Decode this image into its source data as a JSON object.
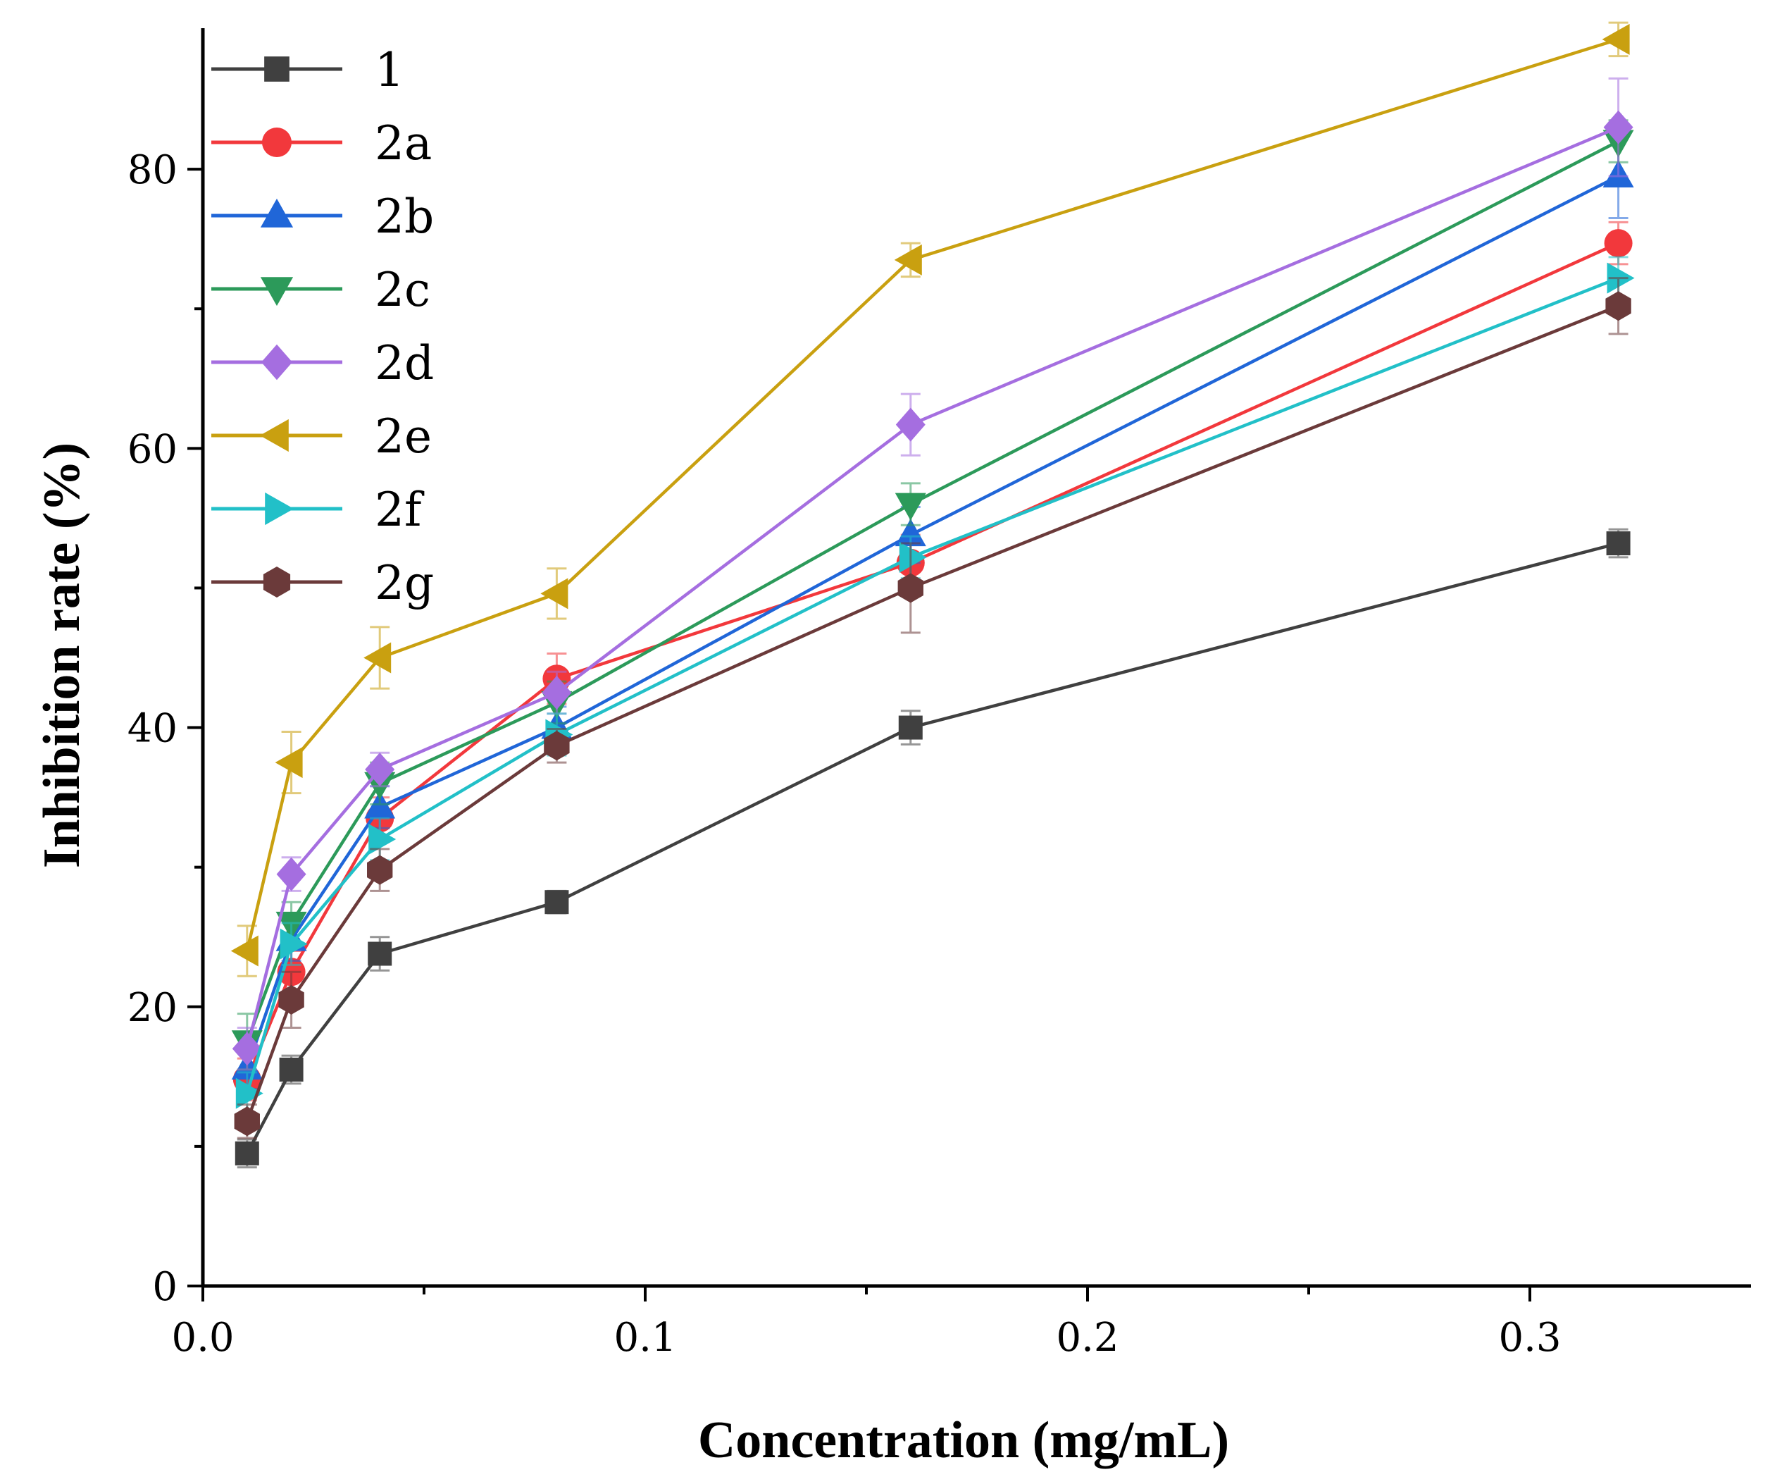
{
  "chart_data": {
    "type": "line",
    "xlabel": "Concentration (mg/mL)",
    "ylabel": "Inhibition rate (%)",
    "xlim": [
      0.0,
      0.35
    ],
    "ylim": [
      0,
      90
    ],
    "xticks": [
      0.0,
      0.1,
      0.2,
      0.3
    ],
    "xtick_labels": [
      "0.0",
      "0.1",
      "0.2",
      "0.3"
    ],
    "yticks": [
      0,
      20,
      40,
      60,
      80
    ],
    "ytick_labels": [
      "0",
      "20",
      "40",
      "60",
      "80"
    ],
    "legend_position": "top-left",
    "x": [
      0.01,
      0.02,
      0.04,
      0.08,
      0.16,
      0.32
    ],
    "series": [
      {
        "name": "1",
        "color": "#404040",
        "marker": "square",
        "values": [
          9.5,
          15.5,
          23.8,
          27.5,
          40.0,
          53.2
        ],
        "errors": [
          1.0,
          1.0,
          1.2,
          0.8,
          1.2,
          1.0
        ]
      },
      {
        "name": "2a",
        "color": "#f2383c",
        "marker": "circle",
        "values": [
          14.8,
          22.5,
          33.5,
          43.5,
          51.8,
          74.7
        ],
        "errors": [
          1.5,
          1.5,
          1.5,
          1.8,
          2.0,
          1.5
        ]
      },
      {
        "name": "2b",
        "color": "#2066d8",
        "marker": "triangle-up",
        "values": [
          15.6,
          24.8,
          34.3,
          40.0,
          53.8,
          79.5
        ],
        "errors": [
          1.5,
          1.5,
          1.5,
          1.5,
          2.0,
          3.0
        ]
      },
      {
        "name": "2c",
        "color": "#2c9a5a",
        "marker": "triangle-down",
        "values": [
          17.5,
          26.0,
          36.0,
          41.8,
          56.0,
          82.0
        ],
        "errors": [
          2.0,
          1.5,
          1.5,
          1.5,
          1.5,
          1.5
        ]
      },
      {
        "name": "2d",
        "color": "#a56ee0",
        "marker": "diamond",
        "values": [
          17.0,
          29.5,
          37.0,
          42.5,
          61.7,
          83.0
        ],
        "errors": [
          1.5,
          1.2,
          1.2,
          1.5,
          2.2,
          3.5
        ]
      },
      {
        "name": "2e",
        "color": "#c9a010",
        "marker": "triangle-left",
        "values": [
          24.0,
          37.5,
          45.0,
          49.6,
          73.5,
          89.3
        ],
        "errors": [
          1.8,
          2.2,
          2.2,
          1.8,
          1.2,
          1.2
        ]
      },
      {
        "name": "2f",
        "color": "#22c0c8",
        "marker": "triangle-right",
        "values": [
          13.8,
          24.5,
          32.0,
          39.5,
          52.2,
          72.2
        ],
        "errors": [
          1.5,
          1.5,
          1.5,
          1.5,
          1.5,
          1.5
        ]
      },
      {
        "name": "2g",
        "color": "#6b3a3a",
        "marker": "hexagon",
        "values": [
          11.8,
          20.5,
          29.8,
          38.7,
          50.0,
          70.2
        ],
        "errors": [
          1.2,
          2.0,
          1.5,
          1.2,
          3.2,
          2.0
        ]
      }
    ]
  }
}
